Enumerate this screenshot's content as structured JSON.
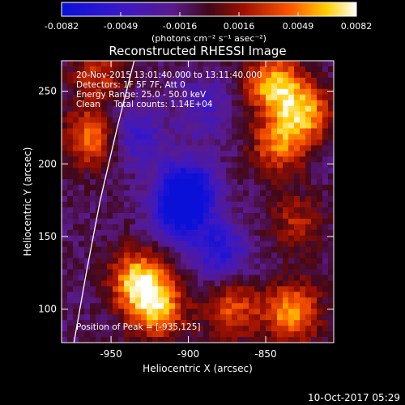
{
  "colorbar": {
    "tick_labels": [
      "-0.0082",
      "-0.0049",
      "-0.0016",
      "0.0016",
      "0.0049",
      "0.0082"
    ],
    "unit_label": "(photons cm⁻² s⁻¹ asec⁻²)"
  },
  "info": {
    "line1": "20-Nov-2015 13:01:40.000 to 13:11:40.000",
    "line2": "Detectors: 1F 5F 7F, Att 0",
    "line3": "Energy Range: 25.0 - 50.0 keV",
    "line4": "Clean     Total counts: 1.14E+04",
    "peak": "Position of Peak = [-935,125]"
  },
  "timestamp": "10-Oct-2017 05:29",
  "chart_data": {
    "type": "heatmap",
    "title": "Reconstructed RHESSI Image",
    "xlabel": "Heliocentric X (arcsec)",
    "ylabel": "Heliocentric Y (arcsec)",
    "xlim": [
      -982,
      -806
    ],
    "ylim": [
      77,
      271
    ],
    "xticks": [
      -950,
      -900,
      -850
    ],
    "yticks": [
      100,
      150,
      200,
      250
    ],
    "colorbar_range": [
      -0.0082,
      0.0082
    ],
    "colormap": "rainbow-blue-purple-red-yellow-white",
    "grid": false,
    "blobs": [
      {
        "x": -905,
        "y": 168,
        "value": -0.0075
      },
      {
        "x": -900,
        "y": 185,
        "value": -0.0058
      },
      {
        "x": -880,
        "y": 140,
        "value": -0.005
      },
      {
        "x": -935,
        "y": 220,
        "value": -0.004
      },
      {
        "x": -890,
        "y": 240,
        "value": -0.003
      },
      {
        "x": -932,
        "y": 120,
        "value": 0.0082
      },
      {
        "x": -920,
        "y": 100,
        "value": 0.007
      },
      {
        "x": -872,
        "y": 100,
        "value": 0.005
      },
      {
        "x": -833,
        "y": 98,
        "value": 0.007
      },
      {
        "x": -845,
        "y": 255,
        "value": 0.0075
      },
      {
        "x": -826,
        "y": 235,
        "value": 0.0072
      },
      {
        "x": -842,
        "y": 212,
        "value": 0.0055
      },
      {
        "x": -963,
        "y": 218,
        "value": 0.006
      },
      {
        "x": -958,
        "y": 262,
        "value": 0.004
      },
      {
        "x": -830,
        "y": 160,
        "value": 0.0035
      }
    ],
    "limb": {
      "x": [
        -974,
        -966,
        -957,
        -946,
        -935
      ],
      "y": [
        77,
        125,
        175,
        225,
        271
      ]
    }
  }
}
